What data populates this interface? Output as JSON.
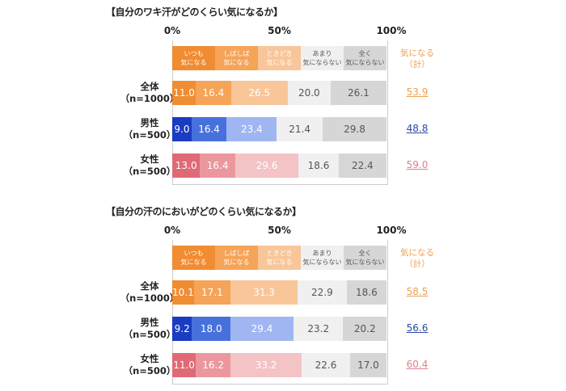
{
  "chart_data": [
    {
      "type": "bar",
      "orientation": "horizontal",
      "stacked": true,
      "title": "【自分のワキ汗がどのくらい気になるか】",
      "xticks": [
        "0%",
        "50%",
        "100%"
      ],
      "xlim": [
        0,
        100
      ],
      "legend": [
        "いつも\n気になる",
        "しばしば\n気になる",
        "ときどき\n気になる",
        "あまり\n気にならない",
        "全く\n気にならない"
      ],
      "total_header": "気になる\n（計）",
      "categories": [
        {
          "name": "全体",
          "n": "（n=1000）"
        },
        {
          "name": "男性",
          "n": "（n=500）"
        },
        {
          "name": "女性",
          "n": "（n=500）"
        }
      ],
      "values": [
        [
          11.0,
          16.4,
          26.5,
          20.0,
          26.1
        ],
        [
          9.0,
          16.4,
          23.4,
          21.4,
          29.8
        ],
        [
          13.0,
          16.4,
          29.6,
          18.6,
          22.4
        ]
      ],
      "totals": [
        "53.9",
        "48.8",
        "59.0"
      ]
    },
    {
      "type": "bar",
      "orientation": "horizontal",
      "stacked": true,
      "title": "【自分の汗のにおいがどのくらい気になるか】",
      "xticks": [
        "0%",
        "50%",
        "100%"
      ],
      "xlim": [
        0,
        100
      ],
      "legend": [
        "いつも\n気になる",
        "しばしば\n気になる",
        "ときどき\n気になる",
        "あまり\n気にならない",
        "全く\n気にならない"
      ],
      "total_header": "気になる\n（計）",
      "categories": [
        {
          "name": "全体",
          "n": "（n=1000）"
        },
        {
          "name": "男性",
          "n": "（n=500）"
        },
        {
          "name": "女性",
          "n": "（n=500）"
        }
      ],
      "values": [
        [
          10.1,
          17.1,
          31.3,
          22.9,
          18.6
        ],
        [
          9.2,
          18.0,
          29.4,
          23.2,
          20.2
        ],
        [
          11.0,
          16.2,
          33.2,
          22.6,
          17.0
        ]
      ],
      "totals": [
        "58.5",
        "56.6",
        "60.4"
      ]
    }
  ],
  "colors": {
    "orange": [
      "#f08c32",
      "#f5a458",
      "#f9c699",
      "#f0f0f0",
      "#d6d6d6"
    ],
    "blue": [
      "#1a3cc0",
      "#4870dc",
      "#9fb6f2",
      "#f0f0f0",
      "#d6d6d6"
    ],
    "pink": [
      "#df6a76",
      "#eb979d",
      "#f4c3c6",
      "#f0f0f0",
      "#d6d6d6"
    ],
    "totals": [
      "#efa050",
      "#2b4aa5",
      "#e0808c"
    ],
    "legend_text": [
      "#fff",
      "#fff",
      "#fff",
      "#555",
      "#555"
    ]
  }
}
